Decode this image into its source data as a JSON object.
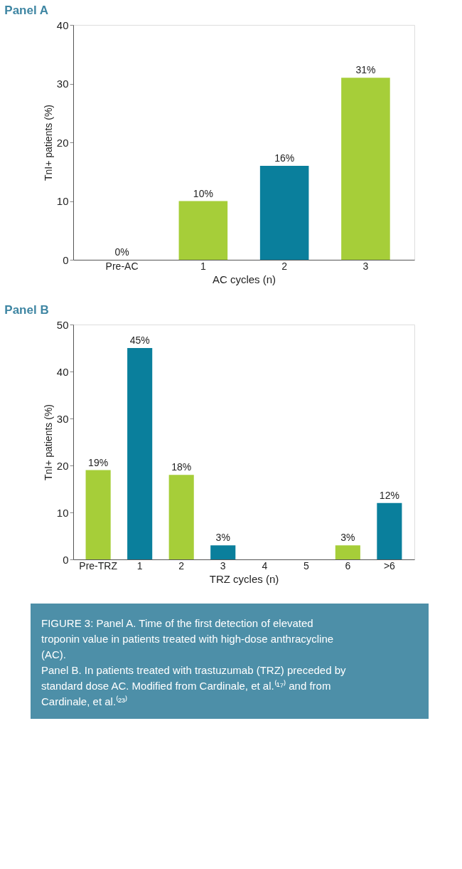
{
  "chart_data": [
    {
      "type": "bar",
      "title": "Panel A",
      "xlabel": "AC cycles (n)",
      "ylabel": "TnI+ patients (%)",
      "categories": [
        "Pre-AC",
        "1",
        "2",
        "3"
      ],
      "values": [
        0,
        10,
        16,
        31
      ],
      "colors": [
        "#a6ce39",
        "#a6ce39",
        "#0a7f9c",
        "#a6ce39"
      ],
      "value_labels": [
        "0%",
        "10%",
        "16%",
        "31%"
      ],
      "ylim": [
        0,
        40
      ],
      "yticks": [
        0,
        10,
        20,
        30,
        40
      ],
      "grid": false
    },
    {
      "type": "bar",
      "title": "Panel B",
      "xlabel": "TRZ cycles (n)",
      "ylabel": "TnI+ patients (%)",
      "categories": [
        "Pre-TRZ",
        "1",
        "2",
        "3",
        "4",
        "5",
        "6",
        ">6"
      ],
      "values": [
        19,
        45,
        18,
        3,
        0,
        0,
        3,
        12
      ],
      "colors": [
        "#a6ce39",
        "#0a7f9c",
        "#a6ce39",
        "#0a7f9c",
        "#0a7f9c",
        "#0a7f9c",
        "#a6ce39",
        "#0a7f9c"
      ],
      "value_labels": [
        "19%",
        "45%",
        "18%",
        "3%",
        null,
        null,
        "3%",
        "12%"
      ],
      "ylim": [
        0,
        50
      ],
      "yticks": [
        0,
        10,
        20,
        30,
        40,
        50
      ],
      "grid": false,
      "annotations": [
        "FIGURE 3: Panel A. Time of the first detection of elevated troponin value in patients treated with high-dose anthracycline (AC).",
        "Panel B. In patients treated with trastuzumab (TRZ) preceded by standard dose AC. Modified from Cardinale, et al.⁽¹⁷⁾ and from Cardinale, et al.⁽²³⁾"
      ]
    }
  ]
}
